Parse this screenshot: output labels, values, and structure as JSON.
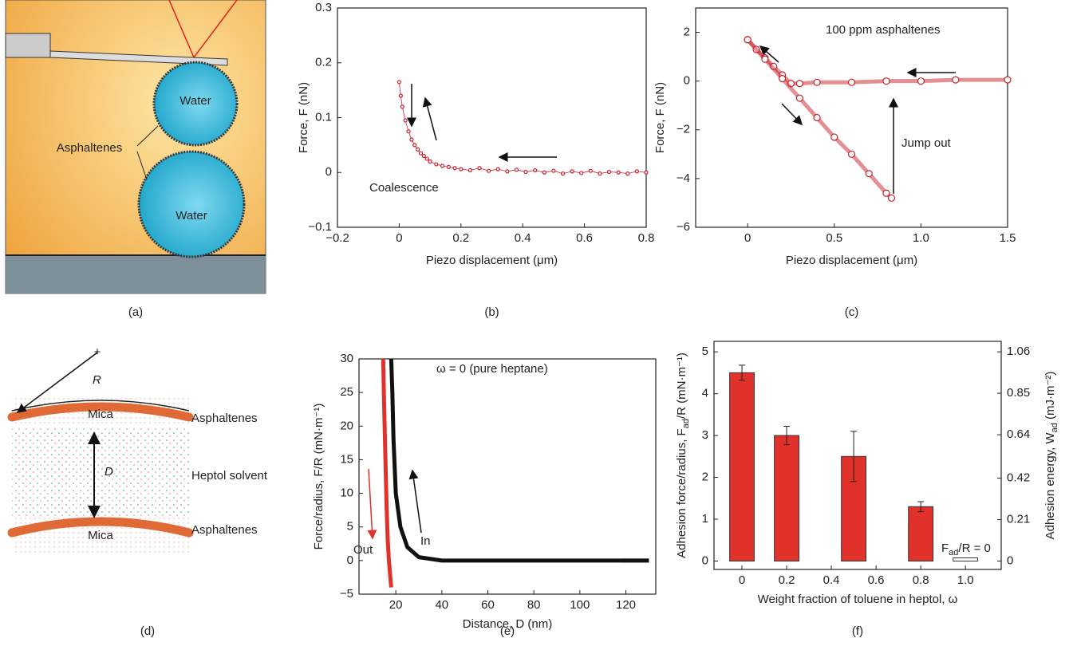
{
  "diagram_a": {
    "label": "(a)",
    "water_top": "Water",
    "water_bottom": "Water",
    "asphaltenes": "Asphaltenes"
  },
  "diagram_d": {
    "label": "(d)",
    "radius": "R",
    "mica_top": "Mica",
    "mica_bottom": "Mica",
    "distance": "D",
    "asphaltenes_top": "Asphaltenes",
    "asphaltenes_bottom": "Asphaltenes",
    "solvent": "Heptol solvent"
  },
  "chart_data": [
    {
      "type": "scatter",
      "label": "(b)",
      "xlabel": [
        "Piezo displacement (μm)"
      ],
      "ylabel": [
        "Force, F (nN)"
      ],
      "annotations": [
        "Coalescence"
      ],
      "xlim": [
        -0.2,
        0.8
      ],
      "ylim": [
        -0.1,
        0.3
      ],
      "xticks": [
        {
          "value": -0.2,
          "label": "−0.2"
        },
        0,
        0.2,
        0.4,
        0.6,
        0.8
      ],
      "yticks": [
        {
          "value": -0.1,
          "label": "−0.1"
        },
        0,
        0.1,
        0.2,
        0.3
      ],
      "series": [
        {
          "color": "#c8202a",
          "x": [
            0,
            0.005,
            0.01,
            0.02,
            0.03,
            0.04,
            0.05,
            0.06,
            0.07,
            0.08,
            0.09,
            0.1,
            0.12,
            0.14,
            0.16,
            0.18,
            0.2,
            0.23,
            0.26,
            0.29,
            0.32,
            0.35,
            0.38,
            0.41,
            0.44,
            0.47,
            0.5,
            0.53,
            0.56,
            0.59,
            0.62,
            0.65,
            0.68,
            0.71,
            0.74,
            0.77,
            0.8
          ],
          "values": [
            0.165,
            0.14,
            0.12,
            0.095,
            0.075,
            0.06,
            0.05,
            0.042,
            0.035,
            0.03,
            0.025,
            0.02,
            0.015,
            0.012,
            0.01,
            0.008,
            0.006,
            0.004,
            0.008,
            0.003,
            0.006,
            0.002,
            0.005,
            0.001,
            0.004,
            0.0,
            0.003,
            -0.002,
            0.002,
            -0.001,
            0.003,
            -0.002,
            0.001,
            0.0,
            -0.002,
            0.002,
            0.0
          ]
        }
      ]
    },
    {
      "type": "scatter",
      "label": "(c)",
      "xlabel": [
        "Piezo displacement (μm)"
      ],
      "ylabel": [
        "Force, F (nN)"
      ],
      "annotations": [
        "100 ppm asphaltenes",
        "Jump out"
      ],
      "xlim": [
        -0.3,
        1.5
      ],
      "ylim": [
        -6,
        3
      ],
      "xticks": [
        0,
        0.5,
        {
          "value": 1,
          "label": "1.0"
        },
        1.5
      ],
      "yticks": [
        {
          "value": -6,
          "label": "−6"
        },
        {
          "value": -4,
          "label": "−4"
        },
        {
          "value": -2,
          "label": "−2"
        },
        0,
        2
      ],
      "series": [
        {
          "color": "#c8202a",
          "x": [
            1.5,
            1.2,
            1.0,
            0.8,
            0.6,
            0.4,
            0.3,
            0.25,
            0.2,
            0.15,
            0.1,
            0.05,
            0
          ],
          "values": [
            0.05,
            0.05,
            0,
            0,
            -0.05,
            -0.05,
            -0.1,
            -0.1,
            0.25,
            0.6,
            0.95,
            1.3,
            1.7
          ]
        },
        {
          "color": "#c8202a",
          "x": [
            0,
            0.1,
            0.2,
            0.3,
            0.4,
            0.5,
            0.6,
            0.7,
            0.8,
            0.83
          ],
          "values": [
            1.7,
            0.9,
            0.1,
            -0.7,
            -1.5,
            -2.3,
            -3.0,
            -3.8,
            -4.6,
            -4.8
          ]
        }
      ]
    },
    {
      "type": "line",
      "label": "(e)",
      "xlabel": [
        "Distance, D (nm)"
      ],
      "ylabel": [
        "Force/radius, F/R (mN·m⁻¹)"
      ],
      "annotations": [
        "ω = 0 (pure heptane)"
      ],
      "xlim": [
        4,
        133
      ],
      "ylim": [
        -5,
        30
      ],
      "xticks": [
        20,
        40,
        60,
        80,
        100,
        120
      ],
      "yticks": [
        {
          "value": -5,
          "label": "−5"
        },
        0,
        5,
        10,
        15,
        20,
        25,
        30
      ],
      "series": [
        {
          "name": "Out",
          "color": "#e0312a",
          "x": [
            14.5,
            15,
            15.5,
            16,
            16.5,
            17,
            17.5,
            18,
            null,
            118,
            124,
            130
          ],
          "values": [
            30,
            22,
            15,
            8,
            3,
            0,
            -2,
            -4,
            null,
            0,
            0,
            0
          ]
        },
        {
          "name": "In",
          "color": "#111111",
          "x": [
            130,
            100,
            80,
            60,
            40,
            30,
            25,
            22,
            20,
            19,
            18.5,
            18
          ],
          "values": [
            0,
            0,
            0,
            0,
            0,
            0.5,
            2,
            5,
            10,
            18,
            25,
            30
          ]
        }
      ]
    },
    {
      "type": "bar",
      "label": "(f)",
      "xlabel": [
        "Weight fraction of toluene in heptol, ω"
      ],
      "ylabel": [
        "Adhesion force/radius, F",
        "ad",
        "/R (mN·m⁻¹)"
      ],
      "y2label": [
        "Adhesion energy, W",
        "ad",
        " (mJ·m⁻²)"
      ],
      "annotations": [
        [
          "F",
          "ad",
          "/R = 0"
        ]
      ],
      "xlim": [
        -0.125,
        1.16
      ],
      "ylim": [
        -0.2,
        5.25
      ],
      "y2lim": [
        -0.0424,
        1.113
      ],
      "xticks": [
        0,
        0.2,
        0.4,
        0.6,
        0.8,
        {
          "value": 1,
          "label": "1.0"
        }
      ],
      "yticks": [
        0,
        1,
        2,
        3,
        4,
        5
      ],
      "y2ticks": [
        0,
        0.21,
        0.42,
        0.64,
        0.85,
        1.06
      ],
      "x": [
        0,
        0.2,
        0.5,
        0.8,
        1.0
      ],
      "values": [
        4.5,
        3.0,
        2.5,
        1.3,
        0
      ],
      "errors": [
        0.18,
        0.22,
        0.6,
        0.12,
        null
      ],
      "colors": [
        "#e0312a",
        "#e0312a",
        "#e0312a",
        "#e0312a",
        "#ffffff"
      ]
    }
  ]
}
